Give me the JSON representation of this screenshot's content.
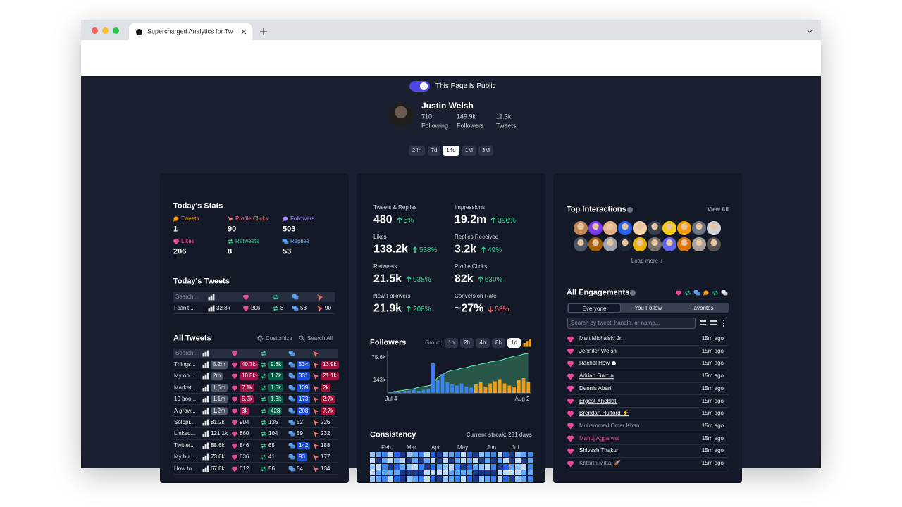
{
  "browser": {
    "tab_title": "Supercharged Analytics for Tw"
  },
  "header": {
    "public_label": "This Page Is Public",
    "name": "Justin Welsh",
    "stats": [
      {
        "value": "710",
        "label": "Following"
      },
      {
        "value": "149.9k",
        "label": "Followers"
      },
      {
        "value": "11.3k",
        "label": "Tweets"
      }
    ],
    "ranges": [
      "24h",
      "7d",
      "14d",
      "1M",
      "3M"
    ]
  },
  "today_stats": {
    "title": "Today's Stats",
    "items": [
      {
        "label": "Tweets",
        "value": "1",
        "color": "#f59e0b",
        "icon": "bubble"
      },
      {
        "label": "Profile Clicks",
        "value": "90",
        "color": "#f87171",
        "icon": "click"
      },
      {
        "label": "Followers",
        "value": "503",
        "color": "#a78bfa",
        "icon": "bubble"
      },
      {
        "label": "Likes",
        "value": "206",
        "color": "#ec4899",
        "icon": "heart"
      },
      {
        "label": "Retweets",
        "value": "8",
        "color": "#34d399",
        "icon": "rt"
      },
      {
        "label": "Replies",
        "value": "53",
        "color": "#60a5fa",
        "icon": "reply"
      }
    ]
  },
  "today_tweets": {
    "title": "Today's Tweets",
    "search": "Search...",
    "rows": [
      [
        "I can't ...",
        "32.8k",
        "206",
        "8",
        "53",
        "90"
      ]
    ]
  },
  "all_tweets": {
    "title": "All Tweets",
    "customize": "Customize",
    "search_all": "Search All",
    "search": "Search...",
    "rows": [
      [
        "Things...",
        "5.2m",
        "40.7k",
        "9.8k",
        "534",
        "13.9k"
      ],
      [
        "My on...",
        "2m",
        "10.8k",
        "1.7k",
        "331",
        "21.1k"
      ],
      [
        "Market...",
        "1.6m",
        "7.1k",
        "1.5k",
        "139",
        "2k"
      ],
      [
        "10 boo...",
        "1.1m",
        "5.2k",
        "1.3k",
        "173",
        "2.7k"
      ],
      [
        "A grow...",
        "1.2m",
        "3k",
        "428",
        "208",
        "7.7k"
      ],
      [
        "Solopr...",
        "81.2k",
        "904",
        "135",
        "52",
        "226"
      ],
      [
        "Linked...",
        "121.1k",
        "860",
        "104",
        "59",
        "232"
      ],
      [
        "Twitter...",
        "88.6k",
        "846",
        "65",
        "142",
        "188"
      ],
      [
        "My bu...",
        "73.6k",
        "636",
        "41",
        "93",
        "177"
      ],
      [
        "How to...",
        "67.8k",
        "612",
        "56",
        "54",
        "134"
      ]
    ],
    "highlight": [
      [
        true,
        true,
        true,
        true,
        true
      ],
      [
        true,
        true,
        true,
        true,
        true
      ],
      [
        true,
        true,
        true,
        true,
        true
      ],
      [
        true,
        true,
        true,
        true,
        true
      ],
      [
        true,
        true,
        true,
        true,
        true
      ],
      [
        false,
        false,
        false,
        false,
        false
      ],
      [
        false,
        false,
        false,
        false,
        false
      ],
      [
        false,
        false,
        false,
        true,
        false
      ],
      [
        false,
        false,
        false,
        true,
        false
      ],
      [
        false,
        false,
        false,
        false,
        false
      ]
    ]
  },
  "metrics": {
    "items": [
      {
        "label": "Tweets & Replies",
        "value": "480",
        "change": "5%",
        "direction": "up"
      },
      {
        "label": "Impressions",
        "value": "19.2m",
        "change": "396%",
        "direction": "up"
      },
      {
        "label": "Likes",
        "value": "138.2k",
        "change": "538%",
        "direction": "up"
      },
      {
        "label": "Replies Received",
        "value": "3.2k",
        "change": "49%",
        "direction": "up"
      },
      {
        "label": "Retweets",
        "value": "21.5k",
        "change": "938%",
        "direction": "up"
      },
      {
        "label": "Profile Clicks",
        "value": "82k",
        "change": "630%",
        "direction": "up"
      },
      {
        "label": "New Followers",
        "value": "21.9k",
        "change": "208%",
        "direction": "up"
      },
      {
        "label": "Conversion Rate",
        "value": "~27%",
        "change": "58%",
        "direction": "down"
      }
    ]
  },
  "followers_chart": {
    "title": "Followers",
    "group_label": "Group:",
    "groups": [
      "1h",
      "2h",
      "4h",
      "8h",
      "1d"
    ],
    "y_labels": [
      "75.6k",
      "143k"
    ],
    "x_labels": [
      "Jul 4",
      "Aug 2"
    ],
    "bar_series": [
      {
        "color": "#3b82f6",
        "values": [
          1,
          2,
          1,
          2,
          2,
          3,
          2,
          3,
          4,
          28,
          12,
          18,
          10,
          8,
          7,
          9,
          6,
          5
        ]
      },
      {
        "color": "#f59e0b",
        "values": [
          8,
          10,
          6,
          9,
          11,
          13,
          9,
          7,
          6,
          12,
          14,
          10
        ]
      }
    ],
    "line": [
      0,
      2,
      3,
      4,
      5,
      6,
      8,
      9,
      10,
      12,
      22,
      26,
      30,
      32,
      33,
      35,
      36,
      38,
      39,
      41,
      42,
      44,
      45,
      46,
      48,
      50,
      52,
      53,
      55,
      56
    ]
  },
  "consistency": {
    "title": "Consistency",
    "streak": "Current streak: 281 days",
    "months": [
      "Feb",
      "Mar",
      "Apr",
      "May",
      "Jun",
      "Jul"
    ]
  },
  "top_interactions": {
    "title": "Top Interactions",
    "view_all": "View All",
    "load_more": "Load more ↓"
  },
  "engagements": {
    "title": "All Engagements",
    "tabs": [
      "Everyone",
      "You Follow",
      "Favorites"
    ],
    "search": "Search by tweet, handle, or name...",
    "rows": [
      {
        "name": "Matt Michalski Jr.",
        "time": "15m ago",
        "style": "normal"
      },
      {
        "name": "Jennifer Welsh",
        "time": "15m ago",
        "style": "normal"
      },
      {
        "name": "Rachel How",
        "time": "15m ago",
        "style": "online"
      },
      {
        "name": "Adrian Garcia",
        "time": "15m ago",
        "style": "underline"
      },
      {
        "name": "Dennis Abari",
        "time": "15m ago",
        "style": "normal"
      },
      {
        "name": "Ergest Xheblati",
        "time": "15m ago",
        "style": "underline"
      },
      {
        "name": "Brendan Hufford ⚡",
        "time": "15m ago",
        "style": "underline"
      },
      {
        "name": "Muhammad Omar Khan",
        "time": "15m ago",
        "style": "muted"
      },
      {
        "name": "Manuj Aggarwal",
        "time": "15m ago",
        "style": "pink"
      },
      {
        "name": "Shivesh Thakur",
        "time": "15m ago",
        "style": "normal"
      },
      {
        "name": "Kritarth Mittal 🚀",
        "time": "15m ago",
        "style": "muted"
      }
    ]
  }
}
